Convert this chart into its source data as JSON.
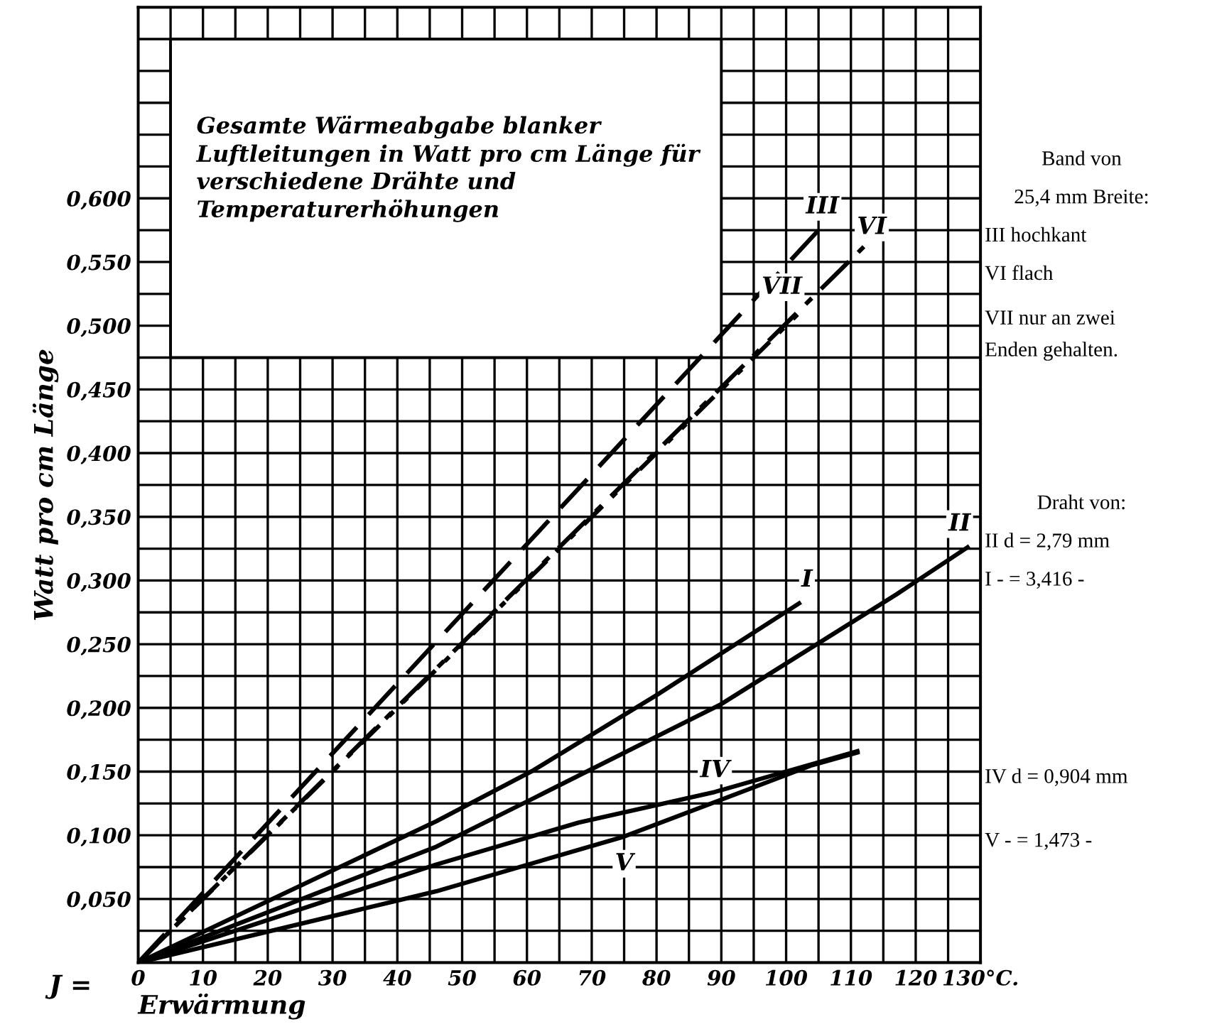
{
  "chart_data": {
    "type": "line",
    "title": "Gesamte Wärmeabgabe blanker Luftleitungen in Watt pro cm Länge für verschiedene Drähte und Temperaturerhöhungen",
    "xlabel": "Erwärmung",
    "ylabel": "Watt pro cm Länge",
    "series": [
      {
        "name": "III",
        "color": "#000000",
        "line_style": "dashed",
        "x": [
          0,
          105
        ],
        "values": [
          0,
          0.575
        ]
      },
      {
        "name": "VI",
        "color": "#000000",
        "line_style": "dashdot",
        "x": [
          0,
          112
        ],
        "values": [
          0,
          0.562
        ]
      },
      {
        "name": "VII",
        "color": "#000000",
        "line_style": "dotted",
        "x": [
          0,
          103
        ],
        "values": [
          0,
          0.515
        ]
      },
      {
        "name": "I",
        "color": "#000000",
        "line_style": "solid",
        "x": [
          0,
          46,
          61,
          80,
          102
        ],
        "values": [
          0,
          0.111,
          0.151,
          0.21,
          0.282
        ]
      },
      {
        "name": "II",
        "color": "#000000",
        "line_style": "solid",
        "x": [
          0,
          46,
          61,
          90,
          117,
          128
        ],
        "values": [
          0,
          0.091,
          0.129,
          0.203,
          0.289,
          0.326
        ]
      },
      {
        "name": "IV",
        "color": "#000000",
        "line_style": "solid",
        "x": [
          0,
          46,
          68,
          89,
          111
        ],
        "values": [
          0,
          0.077,
          0.11,
          0.134,
          0.166
        ]
      },
      {
        "name": "V",
        "color": "#000000",
        "line_style": "solid",
        "x": [
          0,
          46,
          75,
          104,
          111
        ],
        "values": [
          0,
          0.056,
          0.099,
          0.155,
          0.165
        ]
      }
    ],
    "xlim": [
      0,
      130
    ],
    "xticks": [
      0,
      {
        "value": 5,
        "label": null
      },
      10,
      {
        "value": 15,
        "label": null
      },
      20,
      {
        "value": 25,
        "label": null
      },
      30,
      {
        "value": 35,
        "label": null
      },
      40,
      {
        "value": 45,
        "label": null
      },
      50,
      {
        "value": 55,
        "label": null
      },
      60,
      {
        "value": 65,
        "label": null
      },
      70,
      {
        "value": 75,
        "label": null
      },
      80,
      {
        "value": 85,
        "label": null
      },
      90,
      {
        "value": 95,
        "label": null
      },
      100,
      {
        "value": 105,
        "label": null
      },
      110,
      {
        "value": 115,
        "label": null
      },
      120,
      {
        "value": 125,
        "label": null
      },
      {
        "value": 130,
        "label": "130°C."
      }
    ],
    "ylim": [
      0,
      0.75
    ],
    "yticks": [
      {
        "value": 0,
        "label": null
      },
      {
        "value": 0.025,
        "label": null
      },
      {
        "value": 0.05,
        "label": "0,050"
      },
      {
        "value": 0.075,
        "label": null
      },
      {
        "value": 0.1,
        "label": "0,100"
      },
      {
        "value": 0.125,
        "label": null
      },
      {
        "value": 0.15,
        "label": "0,150"
      },
      {
        "value": 0.175,
        "label": null
      },
      {
        "value": 0.2,
        "label": "0,200"
      },
      {
        "value": 0.225,
        "label": null
      },
      {
        "value": 0.25,
        "label": "0,250"
      },
      {
        "value": 0.275,
        "label": null
      },
      {
        "value": 0.3,
        "label": "0,300"
      },
      {
        "value": 0.325,
        "label": null
      },
      {
        "value": 0.35,
        "label": "0,350"
      },
      {
        "value": 0.375,
        "label": null
      },
      {
        "value": 0.4,
        "label": "0,400"
      },
      {
        "value": 0.425,
        "label": null
      },
      {
        "value": 0.45,
        "label": "0,450"
      },
      {
        "value": 0.475,
        "label": null
      },
      {
        "value": 0.5,
        "label": "0,500"
      },
      {
        "value": 0.525,
        "label": null
      },
      {
        "value": 0.55,
        "label": "0,550"
      },
      {
        "value": 0.575,
        "label": null
      },
      {
        "value": 0.6,
        "label": "0,600"
      },
      {
        "value": 0.625,
        "label": null
      },
      {
        "value": 0.65,
        "label": null
      },
      {
        "value": 0.675,
        "label": null
      },
      {
        "value": 0.7,
        "label": null
      },
      {
        "value": 0.725,
        "label": null
      },
      {
        "value": 0.75,
        "label": null
      }
    ],
    "grid": true,
    "legend": false,
    "marker": "none",
    "annotations": [
      "J =",
      "Band von",
      "25,4 mm Breite:",
      "III hochkant",
      "VI flach",
      "VII nur an zwei",
      "Enden gehalten.",
      "Draht von:",
      "II d = 2,79 mm",
      "I - = 3,416 -",
      "IV d = 0,904 mm",
      "V - = 1,473 -"
    ]
  }
}
